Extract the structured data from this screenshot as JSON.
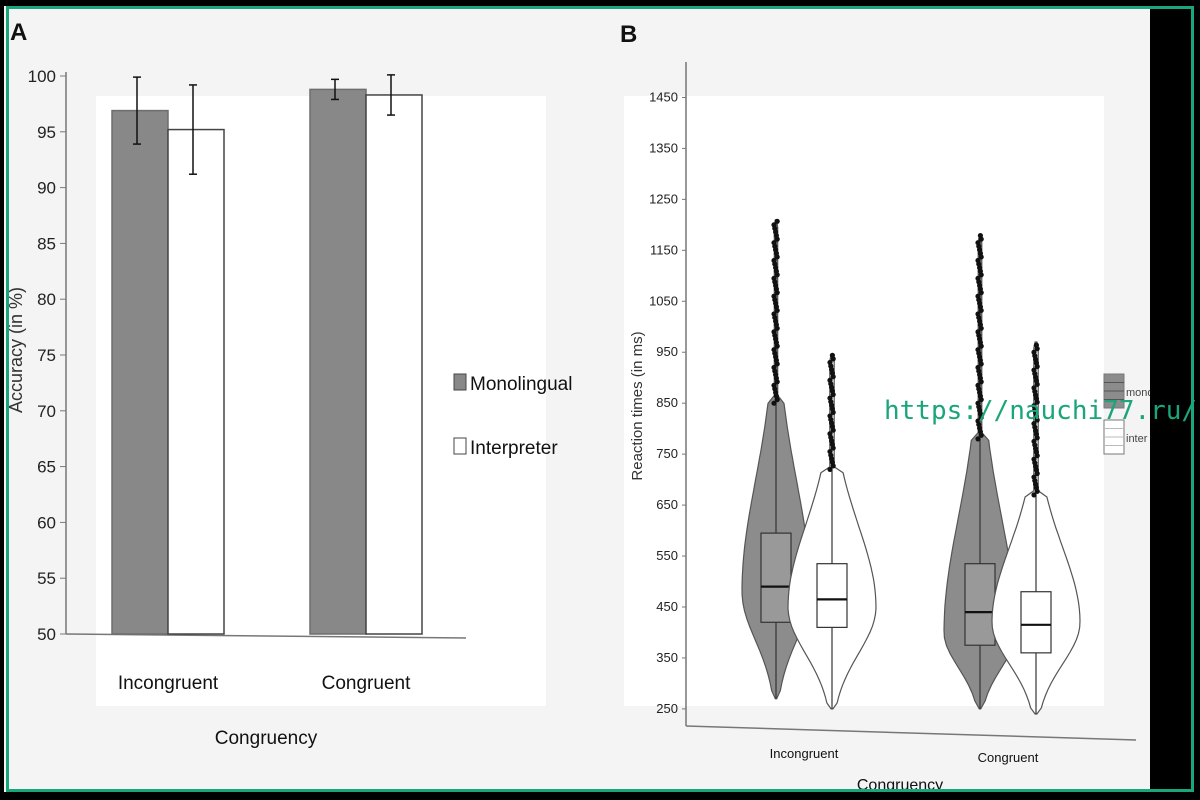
{
  "panels": {
    "a_label": "A",
    "b_label": "B"
  },
  "watermark": "https://nauchi77.ru/",
  "colors": {
    "monolingual": "#888888",
    "interpreter": "#ffffff",
    "frame": "#1aa57a"
  },
  "chart_data": [
    {
      "type": "bar",
      "panel": "A",
      "categories": [
        "Incongruent",
        "Congruent"
      ],
      "series": [
        {
          "name": "Monolingual",
          "values": [
            96.9,
            98.8
          ],
          "errors": [
            3.0,
            0.9
          ]
        },
        {
          "name": "Interpreter",
          "values": [
            95.2,
            98.3
          ],
          "errors": [
            4.0,
            1.8
          ]
        }
      ],
      "title": "",
      "xlabel": "Congruency",
      "ylabel": "Accuracy (in %)",
      "ylim": [
        50,
        100
      ],
      "yticks": [
        50,
        55,
        60,
        65,
        70,
        75,
        80,
        85,
        90,
        95,
        100
      ],
      "legend": "right",
      "grid": false
    },
    {
      "type": "violin",
      "panel": "B",
      "categories": [
        "Incongruent",
        "Congruent"
      ],
      "series": [
        {
          "name": "mono",
          "groups": [
            {
              "q1": 420,
              "median": 490,
              "q3": 595,
              "min": 270,
              "whisker_high": 850,
              "max": 1210,
              "mode": 480
            },
            {
              "q1": 375,
              "median": 440,
              "q3": 535,
              "min": 250,
              "whisker_high": 780,
              "max": 1180,
              "mode": 400
            }
          ]
        },
        {
          "name": "inter",
          "groups": [
            {
              "q1": 410,
              "median": 465,
              "q3": 535,
              "min": 250,
              "whisker_high": 720,
              "max": 945,
              "mode": 450
            },
            {
              "q1": 360,
              "median": 415,
              "q3": 480,
              "min": 240,
              "whisker_high": 670,
              "max": 970,
              "mode": 420
            }
          ]
        }
      ],
      "title": "",
      "xlabel": "Congruency",
      "ylabel": "Reaction times (in ms)",
      "ylim": [
        240,
        1500
      ],
      "yticks": [
        250,
        350,
        450,
        550,
        650,
        750,
        850,
        950,
        1050,
        1150,
        1250,
        1350,
        1450
      ],
      "legend": "right",
      "grid": false
    }
  ]
}
